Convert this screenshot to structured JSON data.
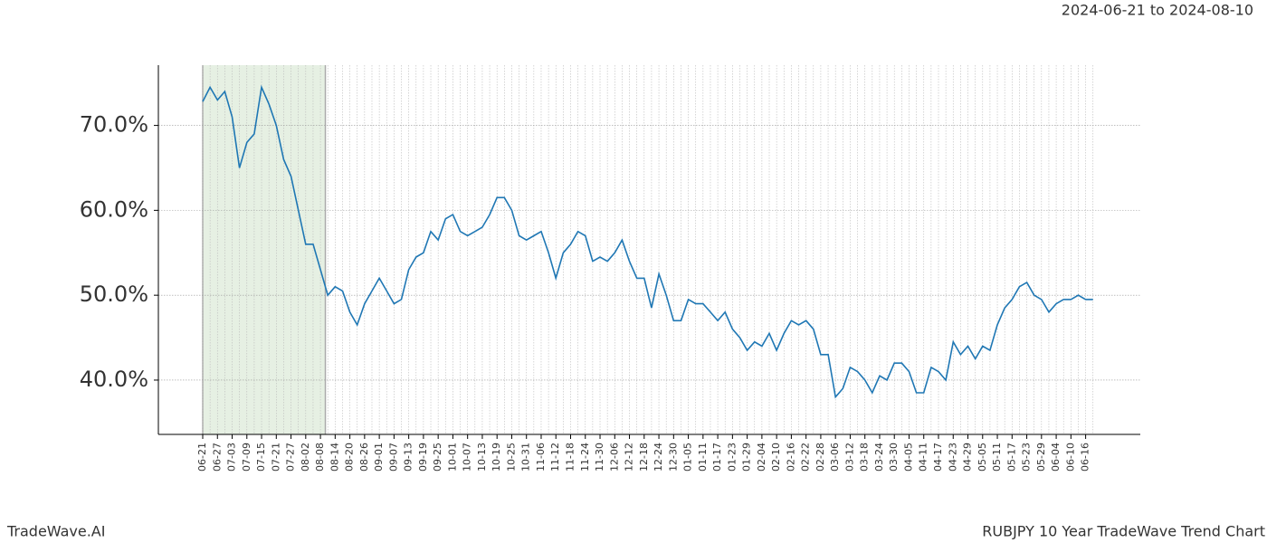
{
  "header": "2024-06-21 to 2024-08-10",
  "footer_left": "TradeWave.AI",
  "footer_right": "RUBJPY 10 Year TradeWave Trend Chart",
  "chart_data": {
    "type": "line",
    "categories": [
      "06-21",
      null,
      "06-27",
      null,
      "07-03",
      null,
      "07-09",
      null,
      "07-15",
      null,
      "07-21",
      null,
      "07-27",
      null,
      "08-02",
      null,
      "08-08",
      null,
      "08-14",
      null,
      "08-20",
      null,
      "08-26",
      null,
      "09-01",
      null,
      "09-07",
      null,
      "09-13",
      null,
      "09-19",
      null,
      "09-25",
      null,
      "10-01",
      null,
      "10-07",
      null,
      "10-13",
      null,
      "10-19",
      null,
      "10-25",
      null,
      "10-31",
      null,
      "11-06",
      null,
      "11-12",
      null,
      "11-18",
      null,
      "11-24",
      null,
      "11-30",
      null,
      "12-06",
      null,
      "12-12",
      null,
      "12-18",
      null,
      "12-24",
      null,
      "12-30",
      null,
      "01-05",
      null,
      "01-11",
      null,
      "01-17",
      null,
      "01-23",
      null,
      "01-29",
      null,
      "02-04",
      null,
      "02-10",
      null,
      "02-16",
      null,
      "02-22",
      null,
      "02-28",
      null,
      "03-06",
      null,
      "03-12",
      null,
      "03-18",
      null,
      "03-24",
      null,
      "03-30",
      null,
      "04-05",
      null,
      "04-11",
      null,
      "04-17",
      null,
      "04-23",
      null,
      "04-29",
      null,
      "05-05",
      null,
      "05-11",
      null,
      "05-17",
      null,
      "05-23",
      null,
      "05-29",
      null,
      "06-04",
      null,
      "06-10",
      null,
      "06-16",
      null
    ],
    "series": [
      {
        "color": "#1f77b4",
        "values": [
          72.8,
          74.5,
          73,
          74,
          71,
          65,
          68,
          69,
          74.5,
          72.5,
          70,
          66,
          64,
          60,
          56,
          56,
          53,
          50,
          51,
          50.5,
          48,
          46.5,
          49,
          50.5,
          52,
          50.5,
          49,
          49.5,
          53,
          54.5,
          55,
          57.5,
          56.5,
          59,
          59.5,
          57.5,
          57,
          57.5,
          58,
          59.5,
          61.5,
          61.5,
          60,
          57,
          56.5,
          57,
          57.5,
          55,
          52,
          55,
          56,
          57.5,
          57,
          54,
          54.5,
          54,
          55,
          56.5,
          54,
          52,
          52,
          48.5,
          52.5,
          50,
          47,
          47,
          49.5,
          49,
          49,
          48,
          47,
          48,
          46,
          45,
          43.5,
          44.5,
          44,
          45.5,
          43.5,
          45.5,
          47,
          46.5,
          47,
          46,
          43,
          43,
          38,
          39,
          41.5,
          41,
          40,
          38.5,
          40.5,
          40,
          42,
          42,
          41,
          38.5,
          38.5,
          41.5,
          41,
          40,
          44.5,
          43,
          44,
          42.5,
          44,
          43.5,
          46.5,
          48.5,
          49.5,
          51,
          51.5,
          50,
          49.5,
          48,
          49,
          49.5,
          49.5,
          50,
          49.5,
          49.5
        ]
      }
    ],
    "ylim": [
      33.6,
      77.1
    ],
    "yticks": [
      {
        "value": 40,
        "label": "40.0%"
      },
      {
        "value": 50,
        "label": "50.0%"
      },
      {
        "value": 60,
        "label": "60.0%"
      },
      {
        "value": 70,
        "label": "70.0%"
      }
    ],
    "grid": true,
    "shaded_span": [
      "06-21",
      "08-08"
    ],
    "shade_color": "#e6f0e3"
  }
}
